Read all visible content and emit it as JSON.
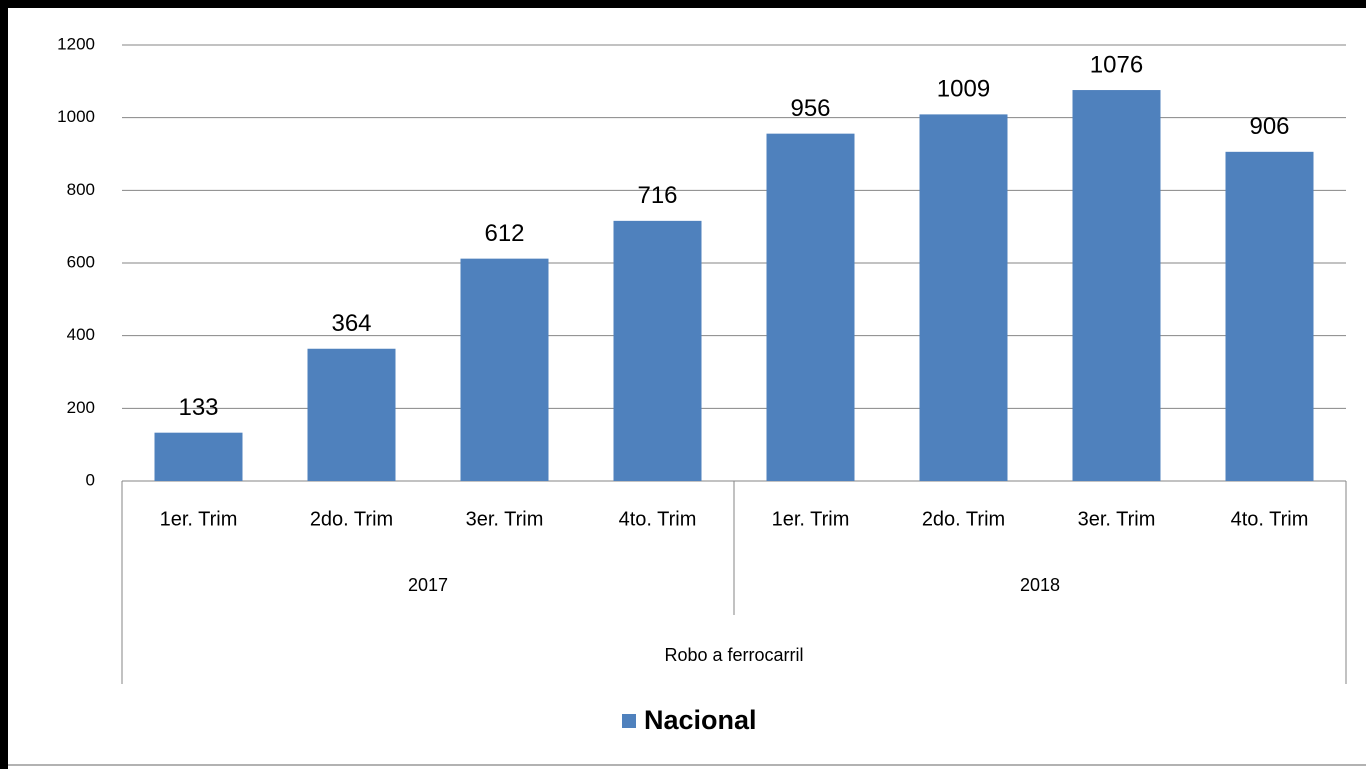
{
  "chart_data": {
    "type": "bar",
    "categories": [
      "1er. Trim",
      "2do. Trim",
      "3er. Trim",
      "4to. Trim",
      "1er. Trim",
      "2do. Trim",
      "3er. Trim",
      "4to. Trim"
    ],
    "category_groups": [
      "2017",
      "2018"
    ],
    "x_label": "Robo a ferrocarril",
    "series": [
      {
        "name": "Nacional",
        "color": "#4f81bd",
        "values": [
          133,
          364,
          612,
          716,
          956,
          1009,
          1076,
          906
        ]
      }
    ],
    "ylim": [
      0,
      1200
    ],
    "yticks": [
      0,
      200,
      400,
      600,
      800,
      1000,
      1200
    ],
    "grid": true,
    "legend": "bottom"
  }
}
